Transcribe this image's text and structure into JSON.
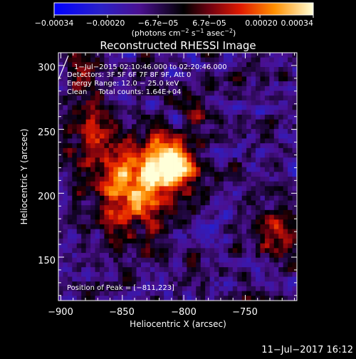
{
  "chart_data": {
    "type": "heatmap",
    "title": "Reconstructed RHESSI Image",
    "xlabel": "Heliocentric X (arcsec)",
    "ylabel": "Heliocentric Y (arcsec)",
    "xlim": [
      -902,
      -708
    ],
    "ylim": [
      116,
      310
    ],
    "x_ticks": [
      -900,
      -850,
      -800,
      -750
    ],
    "x_tick_labels": [
      "−900",
      "−850",
      "−800",
      "−750"
    ],
    "y_ticks": [
      150,
      200,
      250,
      300
    ],
    "y_tick_labels": [
      "150",
      "200",
      "250",
      "300"
    ],
    "colorbar": {
      "min": -0.00034,
      "max": 0.00034,
      "ticks": [
        -0.00034,
        -0.0002,
        -6.7e-05,
        6.7e-05,
        0.0002,
        0.00034
      ],
      "tick_labels": [
        "−0.00034",
        "−0.00020",
        "−6.7e−05",
        "6.7e−05",
        "0.00020",
        "0.00034"
      ],
      "unit_label_parts": [
        "(photons cm",
        "−2",
        " s",
        "−1",
        " asec",
        "−2",
        ")"
      ]
    },
    "annotations": [
      "1−Jul−2015 02:10:46.000 to 02:20:46.000",
      "Detectors: 3F 5F 6F 7F 8F 9F, Att 0",
      "Energy Range: 12.0 − 25.0 keV",
      "Clean     Total counts: 1.64E+04"
    ],
    "peak_label": "Position of Peak = [−811,223]",
    "peak": [
      -811,
      223
    ],
    "sources": [
      {
        "x": -811,
        "y": 223,
        "amp": 1.0,
        "sigma": 14
      },
      {
        "x": -842,
        "y": 202,
        "amp": 0.75,
        "sigma": 22
      },
      {
        "x": -870,
        "y": 245,
        "amp": 0.45,
        "sigma": 16
      },
      {
        "x": -885,
        "y": 290,
        "amp": 0.35,
        "sigma": 14
      },
      {
        "x": -725,
        "y": 165,
        "amp": 0.45,
        "sigma": 14
      },
      {
        "x": -790,
        "y": 265,
        "amp": 0.25,
        "sigma": 12
      }
    ]
  },
  "footer": {
    "timestamp": "11−Jul−2017 16:12"
  }
}
